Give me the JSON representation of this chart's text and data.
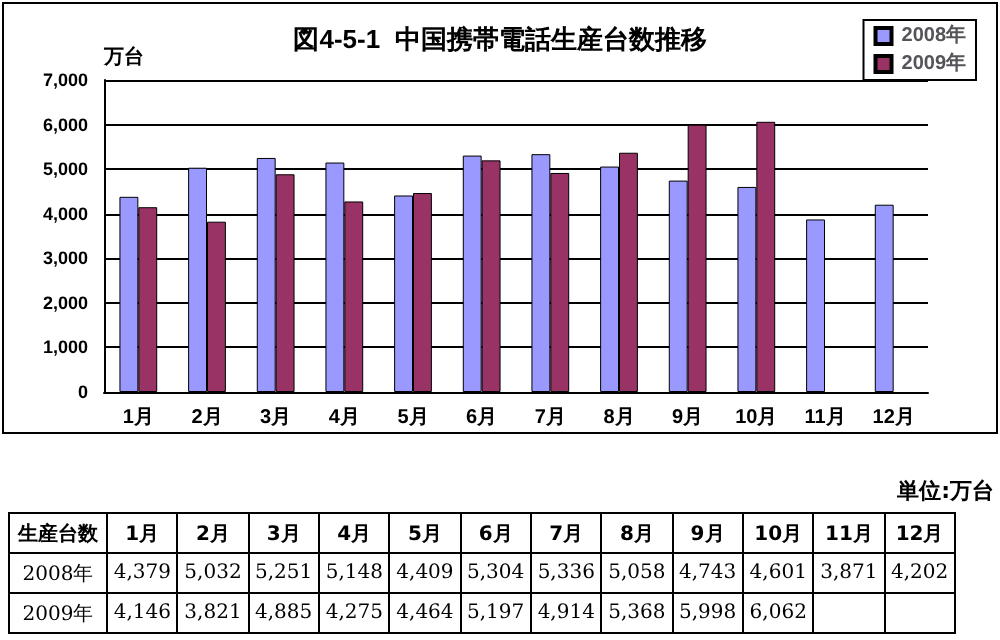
{
  "chart_data": {
    "type": "bar",
    "title": "図4-5-1  中国携帯電話生産台数推移",
    "ylabel": "万台",
    "categories": [
      "1月",
      "2月",
      "3月",
      "4月",
      "5月",
      "6月",
      "7月",
      "8月",
      "9月",
      "10月",
      "11月",
      "12月"
    ],
    "series": [
      {
        "name": "2008年",
        "color": "#9999ff",
        "values": [
          4379,
          5032,
          5251,
          5148,
          4409,
          5304,
          5336,
          5058,
          4743,
          4601,
          3871,
          4202
        ],
        "value_labels": [
          "4,379",
          "5,032",
          "5,251",
          "5,148",
          "4,409",
          "5,304",
          "5,336",
          "5,058",
          "4,743",
          "4,601",
          "3,871",
          "4,202"
        ]
      },
      {
        "name": "2009年",
        "color": "#993366",
        "values": [
          4146,
          3821,
          4885,
          4275,
          4464,
          5197,
          4914,
          5368,
          5998,
          6062,
          null,
          null
        ],
        "value_labels": [
          "4,146",
          "3,821",
          "4,885",
          "4,275",
          "4,464",
          "5,197",
          "4,914",
          "5,368",
          "5,998",
          "6,062",
          null,
          null
        ]
      }
    ],
    "ylim": [
      0,
      7000
    ],
    "yticks": [
      0,
      {
        "value": 1000,
        "label": "1,000"
      },
      {
        "value": 2000,
        "label": "2,000"
      },
      {
        "value": 3000,
        "label": "3,000"
      },
      {
        "value": 4000,
        "label": "4,000"
      },
      {
        "value": 5000,
        "label": "5,000"
      },
      {
        "value": 6000,
        "label": "6,000"
      },
      {
        "value": 7000,
        "label": "7,000"
      }
    ],
    "grid": "y",
    "legend": "top right",
    "annotations": [
      "単位:万台",
      "生産台数"
    ]
  }
}
